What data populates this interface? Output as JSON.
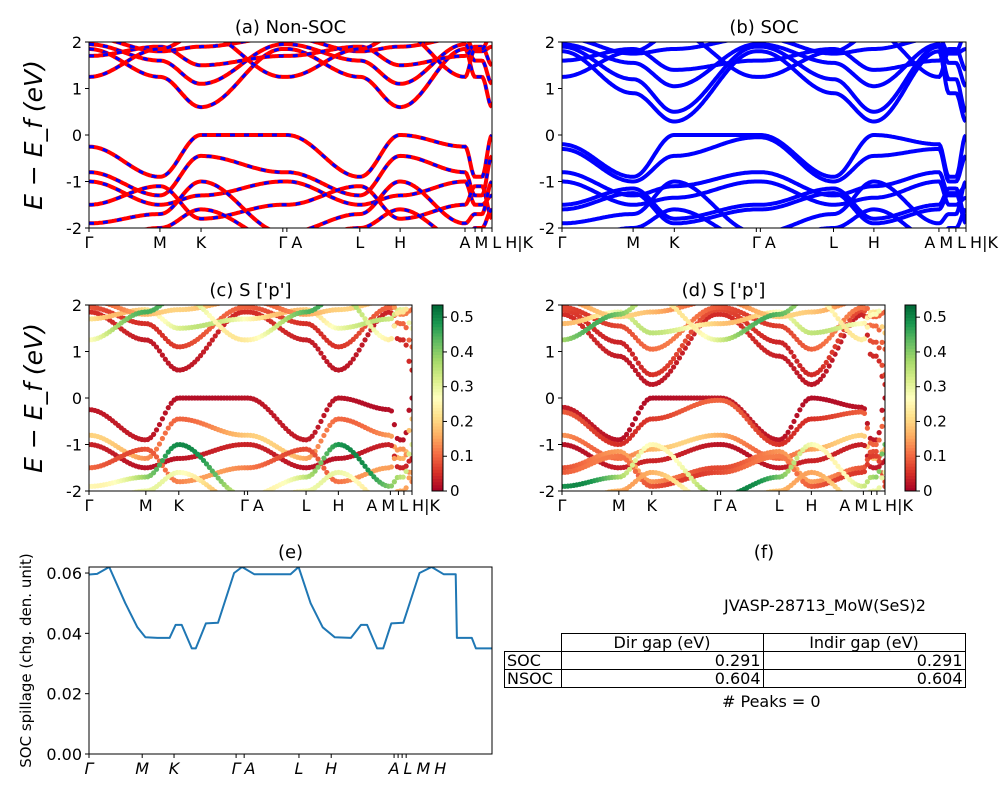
{
  "chart_data": [
    {
      "id": "a",
      "type": "line",
      "title": "(a) Non-SOC",
      "ylabel": "E − E_f (eV)",
      "ylim": [
        -2,
        2
      ],
      "yticks": [
        -2,
        -1,
        0,
        1,
        2
      ],
      "xtick_labels": [
        "Γ",
        "M",
        "K",
        "Γ",
        "A",
        "L",
        "H",
        "A",
        "M",
        "L",
        "H|K"
      ],
      "series_colors": {
        "line": "#ff0000",
        "dash": "#0000ff"
      },
      "kpath": [
        "Γ",
        "M",
        "K",
        "Γ",
        "A",
        "L",
        "H",
        "A"
      ],
      "bands": [
        [
          1.85,
          1.25,
          0.6,
          1.85,
          1.85,
          1.25,
          0.6,
          1.85
        ],
        [
          1.95,
          1.6,
          1.1,
          1.95,
          1.95,
          1.6,
          1.1,
          1.95
        ],
        [
          1.7,
          1.9,
          1.5,
          1.7,
          1.7,
          1.9,
          1.5,
          1.7
        ],
        [
          2.1,
          1.8,
          1.9,
          2.1,
          2.1,
          1.8,
          1.9,
          2.1
        ],
        [
          1.25,
          1.85,
          2.2,
          1.25,
          1.25,
          1.85,
          2.2,
          1.25
        ],
        [
          -0.25,
          -0.9,
          0.0,
          0.0,
          0.0,
          -0.9,
          0.0,
          -0.25
        ],
        [
          -0.8,
          -1.3,
          -0.45,
          -0.8,
          -0.8,
          -1.3,
          -0.45,
          -0.8
        ],
        [
          -1.0,
          -1.5,
          -1.3,
          -1.0,
          -1.0,
          -1.5,
          -1.3,
          -1.0
        ],
        [
          -1.5,
          -1.1,
          -1.8,
          -1.5,
          -1.5,
          -1.1,
          -1.8,
          -1.5
        ],
        [
          -1.9,
          -1.7,
          -1.0,
          -2.1,
          -2.1,
          -1.7,
          -1.0,
          -1.9
        ],
        [
          -2.3,
          -2.0,
          -1.6,
          -2.3,
          -2.3,
          -2.0,
          -1.6,
          -2.3
        ]
      ]
    },
    {
      "id": "b",
      "type": "line",
      "title": "(b) SOC",
      "ylim": [
        -2,
        2
      ],
      "yticks": [
        -2,
        -1,
        0,
        1,
        2
      ],
      "xtick_labels": [
        "Γ",
        "M",
        "K",
        "Γ",
        "A",
        "L",
        "H",
        "A",
        "M",
        "L",
        "H|K"
      ],
      "series_colors": {
        "line": "#0000ff"
      },
      "kpath": [
        "Γ",
        "M",
        "K",
        "Γ",
        "A",
        "L",
        "H",
        "A"
      ],
      "bands": [
        [
          1.8,
          0.9,
          0.29,
          1.8,
          1.8,
          0.9,
          0.29,
          1.8
        ],
        [
          1.9,
          1.2,
          0.5,
          1.9,
          1.9,
          1.2,
          0.5,
          1.9
        ],
        [
          1.95,
          1.55,
          1.05,
          1.95,
          1.95,
          1.55,
          1.05,
          1.95
        ],
        [
          1.6,
          1.85,
          1.4,
          1.6,
          1.6,
          1.85,
          1.4,
          1.6
        ],
        [
          2.1,
          1.75,
          1.85,
          2.1,
          2.1,
          1.75,
          1.85,
          2.1
        ],
        [
          1.25,
          1.8,
          2.2,
          1.25,
          1.25,
          1.8,
          2.2,
          1.25
        ],
        [
          -0.2,
          -0.9,
          0.0,
          0.0,
          0.0,
          -0.9,
          0.0,
          -0.2
        ],
        [
          -0.3,
          -1.0,
          -0.45,
          -0.05,
          -0.05,
          -1.0,
          -0.45,
          -0.3
        ],
        [
          -0.8,
          -1.3,
          -1.1,
          -0.8,
          -0.8,
          -1.3,
          -1.1,
          -0.8
        ],
        [
          -1.0,
          -1.5,
          -1.35,
          -1.0,
          -1.0,
          -1.5,
          -1.35,
          -1.0
        ],
        [
          -1.5,
          -1.15,
          -1.8,
          -1.5,
          -1.5,
          -1.15,
          -1.8,
          -1.5
        ],
        [
          -1.6,
          -1.25,
          -1.9,
          -1.6,
          -1.6,
          -1.25,
          -1.9,
          -1.6
        ],
        [
          -1.9,
          -1.7,
          -1.0,
          -2.1,
          -2.1,
          -1.7,
          -1.0,
          -1.9
        ],
        [
          -2.3,
          -2.0,
          -1.6,
          -2.3,
          -2.3,
          -2.0,
          -1.6,
          -2.3
        ]
      ]
    },
    {
      "id": "c",
      "type": "scatter",
      "title": "(c)  S ['p']",
      "ylabel": "E − E_f (eV)",
      "ylim": [
        -2,
        2
      ],
      "yticks": [
        -2,
        -1,
        0,
        1,
        2
      ],
      "xtick_labels": [
        "Γ",
        "M",
        "K",
        "Γ",
        "A",
        "L",
        "H",
        "A",
        "M",
        "L",
        "H|K"
      ],
      "colormap": "RdYlGn",
      "clim": [
        0,
        0.535
      ],
      "colorbar_ticks": [
        0.0,
        0.1,
        0.2,
        0.3,
        0.4,
        0.5
      ],
      "band_source": "a",
      "weights": [
        0.05,
        0.1,
        0.35,
        0.2,
        0.45,
        0.03,
        0.2,
        0.04,
        0.15,
        0.5,
        0.3
      ]
    },
    {
      "id": "d",
      "type": "scatter",
      "title": "(d) S ['p']",
      "ylim": [
        -2,
        2
      ],
      "yticks": [
        -2,
        -1,
        0,
        1,
        2
      ],
      "xtick_labels": [
        "Γ",
        "M",
        "K",
        "Γ",
        "A",
        "L",
        "H",
        "A",
        "M",
        "L",
        "H|K"
      ],
      "colormap": "RdYlGn",
      "clim": [
        0,
        0.535
      ],
      "colorbar_ticks": [
        0.0,
        0.1,
        0.2,
        0.3,
        0.4,
        0.5
      ],
      "band_source": "b",
      "weights": [
        0.05,
        0.08,
        0.12,
        0.35,
        0.2,
        0.45,
        0.03,
        0.1,
        0.2,
        0.04,
        0.15,
        0.12,
        0.5,
        0.3
      ]
    },
    {
      "id": "e",
      "type": "line",
      "title": "(e)",
      "ylabel": "SOC spillage (chg. den. unit)",
      "ylim": [
        0,
        0.062
      ],
      "yticks": [
        "0.00",
        "0.02",
        "0.04",
        "0.06"
      ],
      "xtick_labels": [
        "Γ",
        "M",
        "K",
        "Γ",
        "A",
        "L",
        "H",
        "A",
        "L",
        "M",
        "H"
      ],
      "color": "#1f77b4",
      "x": [
        0,
        0.02,
        0.05,
        0.09,
        0.12,
        0.14,
        0.17,
        0.2,
        0.215,
        0.23,
        0.255,
        0.265,
        0.29,
        0.32,
        0.36,
        0.38,
        0.41,
        0.5,
        0.52,
        0.55,
        0.58,
        0.61,
        0.65,
        0.675,
        0.69,
        0.715,
        0.73,
        0.75,
        0.78,
        0.82,
        0.85,
        0.88,
        0.91,
        0.913,
        0.95,
        0.96,
        1.0
      ],
      "y": [
        0.0595,
        0.0597,
        0.062,
        0.05,
        0.042,
        0.0387,
        0.0385,
        0.0385,
        0.0428,
        0.0428,
        0.035,
        0.035,
        0.0433,
        0.0435,
        0.06,
        0.062,
        0.0596,
        0.0596,
        0.062,
        0.05,
        0.042,
        0.0387,
        0.0385,
        0.0428,
        0.0428,
        0.035,
        0.035,
        0.0433,
        0.0435,
        0.06,
        0.062,
        0.0596,
        0.0596,
        0.0385,
        0.0385,
        0.035,
        0.035
      ]
    }
  ],
  "panel_f": {
    "title": "(f)",
    "material": "JVASP-28713_MoW(SeS)2",
    "columns": [
      "Dir gap (eV)",
      "Indir gap (eV)"
    ],
    "rows": [
      {
        "label": "SOC",
        "dir": "0.291",
        "indir": "0.291"
      },
      {
        "label": "NSOC",
        "dir": "0.604",
        "indir": "0.604"
      }
    ],
    "peaks": "# Peaks = 0"
  }
}
